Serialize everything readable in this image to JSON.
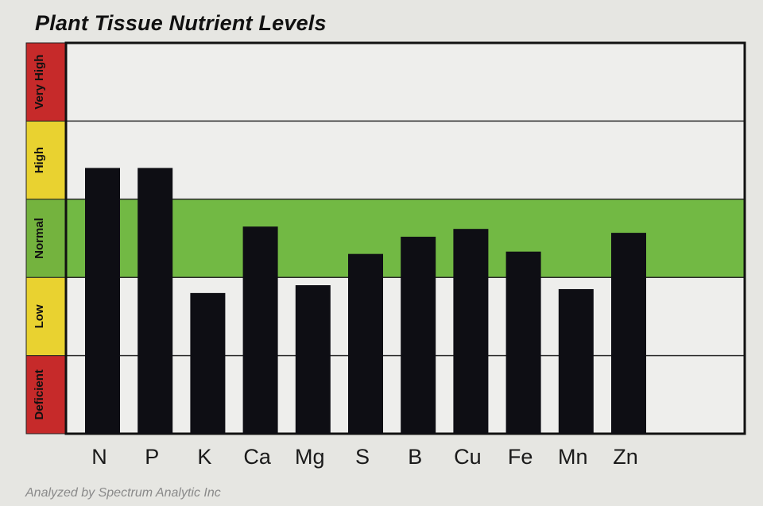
{
  "title": "Plant Tissue Nutrient Levels",
  "footer": "Analyzed by Spectrum Analytic Inc",
  "chart_data": {
    "type": "bar",
    "title": "Plant Tissue Nutrient Levels",
    "categories": [
      "N",
      "P",
      "K",
      "Ca",
      "Mg",
      "S",
      "B",
      "Cu",
      "Fe",
      "Mn",
      "Zn"
    ],
    "values": [
      3.4,
      3.4,
      1.8,
      2.65,
      1.9,
      2.3,
      2.52,
      2.62,
      2.33,
      1.85,
      2.57
    ],
    "bands": [
      {
        "label": "Deficient",
        "range": [
          0,
          1
        ],
        "color": "#c62a2a"
      },
      {
        "label": "Low",
        "range": [
          1,
          2
        ],
        "color": "#e9d230"
      },
      {
        "label": "Normal",
        "range": [
          2,
          3
        ],
        "color": "#74b33e"
      },
      {
        "label": "High",
        "range": [
          3,
          4
        ],
        "color": "#e9d230"
      },
      {
        "label": "Very High",
        "range": [
          4,
          5
        ],
        "color": "#c62a2a"
      }
    ],
    "ylim": [
      0,
      5
    ],
    "normal_band_fill": "#72b944",
    "bar_color": "#0e0e14",
    "grid": true
  }
}
